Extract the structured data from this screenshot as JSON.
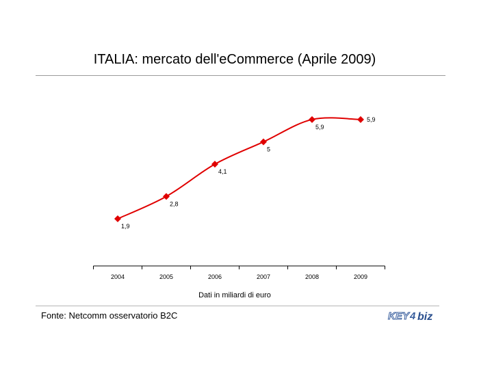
{
  "chart_data": {
    "type": "line",
    "title": "ITALIA: mercato dell'eCommerce (Aprile 2009)",
    "xlabel": "Dati in miliardi di euro",
    "ylabel": "",
    "categories": [
      "2004",
      "2005",
      "2006",
      "2007",
      "2008",
      "2009"
    ],
    "series": [
      {
        "values": [
          1.9,
          2.8,
          4.1,
          5,
          5.9,
          5.9
        ]
      }
    ],
    "data_labels": [
      "1,9",
      "2,8",
      "4,1",
      "5",
      "5,9",
      "5,9"
    ],
    "ylim": [
      0,
      7
    ],
    "grid": false,
    "legend": "none",
    "line_color": "#e00000"
  },
  "footer": {
    "source": "Fonte: Netcomm osservatorio B2C",
    "logo_text": "KEY4biz"
  }
}
